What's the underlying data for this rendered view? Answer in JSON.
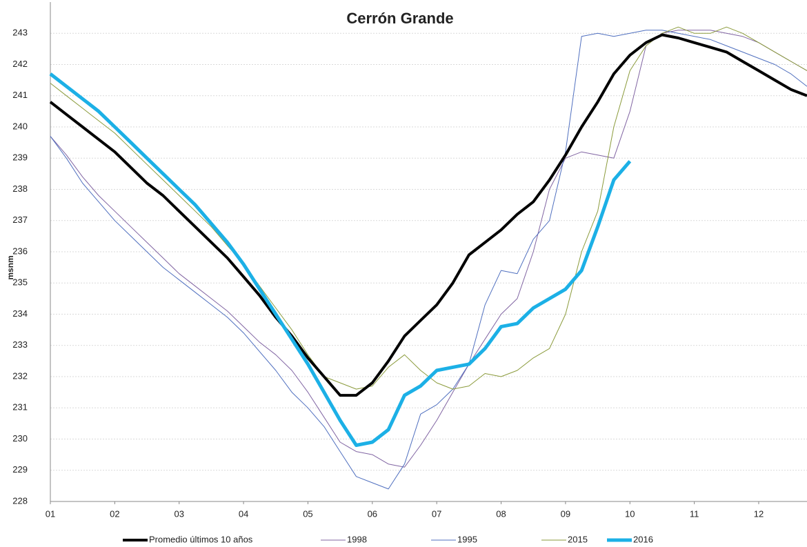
{
  "chart_data": {
    "type": "line",
    "title": "Cerrón Grande",
    "y_label": "msnm",
    "x": [
      1,
      1.25,
      1.5,
      1.75,
      2,
      2.25,
      2.5,
      2.75,
      3,
      3.25,
      3.5,
      3.75,
      4,
      4.25,
      4.5,
      4.75,
      5,
      5.25,
      5.5,
      5.75,
      6,
      6.25,
      6.5,
      6.75,
      7,
      7.25,
      7.5,
      7.75,
      8,
      8.25,
      8.5,
      8.75,
      9,
      9.25,
      9.5,
      9.75,
      10,
      10.25,
      10.5,
      10.75,
      11,
      11.25,
      11.5,
      11.75,
      12,
      12.25,
      12.5,
      12.75
    ],
    "xlim": [
      1,
      12.75
    ],
    "xticks": [
      {
        "value": 1,
        "label": "01"
      },
      {
        "value": 2,
        "label": "02"
      },
      {
        "value": 3,
        "label": "03"
      },
      {
        "value": 4,
        "label": "04"
      },
      {
        "value": 5,
        "label": "05"
      },
      {
        "value": 6,
        "label": "06"
      },
      {
        "value": 7,
        "label": "07"
      },
      {
        "value": 8,
        "label": "08"
      },
      {
        "value": 9,
        "label": "09"
      },
      {
        "value": 10,
        "label": "10"
      },
      {
        "value": 11,
        "label": "11"
      },
      {
        "value": 12,
        "label": "12"
      }
    ],
    "ylim": [
      228,
      244
    ],
    "yticks": [
      228,
      229,
      230,
      231,
      232,
      233,
      234,
      235,
      236,
      237,
      238,
      239,
      240,
      241,
      242,
      243
    ],
    "grid": true,
    "series": [
      {
        "name": "Promedio últimos 10 años",
        "color": "#000000",
        "line_width": 4,
        "values": [
          240.8,
          240.4,
          240.0,
          239.6,
          239.2,
          238.7,
          238.2,
          237.8,
          237.3,
          236.8,
          236.3,
          235.8,
          235.2,
          234.6,
          233.9,
          233.3,
          232.6,
          232.0,
          231.4,
          231.4,
          231.8,
          232.5,
          233.3,
          233.8,
          234.3,
          235.0,
          235.9,
          236.3,
          236.7,
          237.2,
          237.6,
          238.3,
          239.1,
          240.0,
          240.8,
          241.7,
          242.3,
          242.7,
          242.95,
          242.85,
          242.7,
          242.55,
          242.4,
          242.1,
          241.8,
          241.5,
          241.2,
          241.0
        ]
      },
      {
        "name": "1998",
        "color": "#8064a2",
        "line_width": 1,
        "values": [
          239.7,
          239.1,
          238.4,
          237.8,
          237.3,
          236.8,
          236.3,
          235.8,
          235.3,
          234.9,
          234.5,
          234.1,
          233.6,
          233.1,
          232.7,
          232.2,
          231.5,
          230.7,
          229.9,
          229.6,
          229.5,
          229.2,
          229.1,
          229.8,
          230.6,
          231.5,
          232.4,
          233.2,
          234.0,
          234.5,
          236.0,
          238.0,
          239.0,
          239.2,
          239.1,
          239.0,
          240.5,
          242.6,
          243.0,
          243.1,
          243.1,
          243.1,
          243.0,
          242.9,
          242.7,
          242.4,
          242.1,
          241.8
        ]
      },
      {
        "name": "1995",
        "color": "#4f6fbf",
        "line_width": 1,
        "values": [
          239.7,
          239.0,
          238.2,
          237.6,
          237.0,
          236.5,
          236.0,
          235.5,
          235.1,
          234.7,
          234.3,
          233.9,
          233.4,
          232.8,
          232.2,
          231.5,
          231.0,
          230.4,
          229.6,
          228.8,
          228.6,
          228.4,
          229.2,
          230.8,
          231.1,
          231.6,
          232.4,
          234.3,
          235.4,
          235.3,
          236.4,
          237.0,
          239.2,
          242.9,
          243.0,
          242.9,
          243.0,
          243.1,
          243.1,
          243.0,
          242.9,
          242.8,
          242.6,
          242.4,
          242.2,
          242.0,
          241.7,
          241.3
        ]
      },
      {
        "name": "2015",
        "color": "#8a9a3a",
        "line_width": 1,
        "values": [
          241.4,
          241.0,
          240.6,
          240.2,
          239.8,
          239.3,
          238.8,
          238.3,
          237.8,
          237.3,
          236.8,
          236.2,
          235.6,
          234.9,
          234.2,
          233.5,
          232.7,
          232.0,
          231.8,
          231.6,
          231.7,
          232.3,
          232.7,
          232.2,
          231.8,
          231.6,
          231.7,
          232.1,
          232.0,
          232.2,
          232.6,
          232.9,
          234.0,
          236.0,
          237.3,
          240.0,
          241.8,
          242.6,
          243.0,
          243.2,
          243.0,
          243.0,
          243.2,
          243.0,
          242.7,
          242.4,
          242.1,
          241.8
        ]
      },
      {
        "name": "2016",
        "color": "#1cb0e6",
        "line_width": 5,
        "values": [
          241.7,
          241.3,
          240.9,
          240.5,
          240.0,
          239.5,
          239.0,
          238.5,
          238.0,
          237.5,
          236.9,
          236.3,
          235.6,
          234.8,
          234.0,
          233.2,
          232.4,
          231.5,
          230.6,
          229.8,
          229.9,
          230.3,
          231.4,
          231.7,
          232.2,
          232.3,
          232.4,
          232.9,
          233.6,
          233.7,
          234.2,
          234.5,
          234.8,
          235.4,
          236.8,
          238.3,
          238.9,
          null,
          null,
          null,
          null,
          null,
          null,
          null,
          null,
          null,
          null,
          null
        ]
      }
    ]
  }
}
